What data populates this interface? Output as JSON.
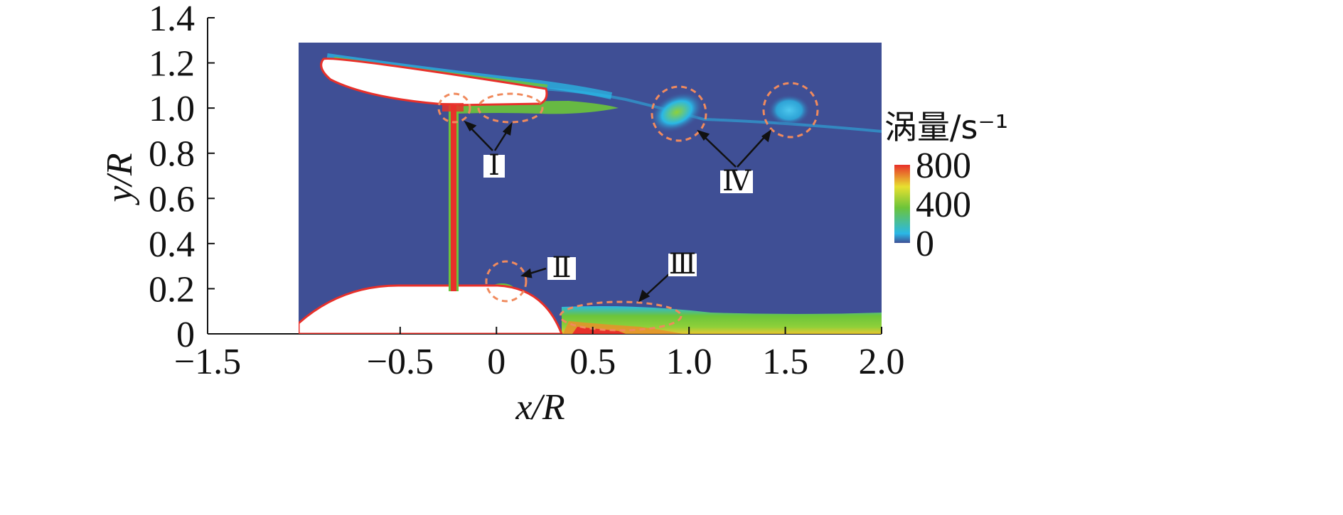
{
  "chart_data": {
    "type": "heatmap",
    "title": "",
    "xlabel": "x/R",
    "ylabel": "y/R",
    "xlim": [
      -1.5,
      2.0
    ],
    "ylim": [
      0,
      1.4
    ],
    "xticks": [
      "−1.5",
      "−0.5",
      "0",
      "0.5",
      "1.0",
      "1.5",
      "2.0"
    ],
    "xtick_values": [
      -1.5,
      -0.5,
      0,
      0.5,
      1.0,
      1.5,
      2.0
    ],
    "yticks": [
      "0",
      "0.2",
      "0.4",
      "0.6",
      "0.8",
      "1.0",
      "1.2",
      "1.4"
    ],
    "ytick_values": [
      0,
      0.2,
      0.4,
      0.6,
      0.8,
      1.0,
      1.2,
      1.4
    ],
    "domain_x": [
      -0.58,
      2.0
    ],
    "domain_y": [
      0,
      1.3
    ],
    "colorbar": {
      "title": "涡量/s⁻¹",
      "ticks": [
        "800",
        "400",
        "0"
      ],
      "tick_values": [
        800,
        400,
        0
      ],
      "range": [
        0,
        800
      ],
      "colors": [
        "#3f4f95",
        "#2ab8e6",
        "#6cc43a",
        "#e8e030",
        "#e8302a"
      ]
    },
    "annotations": [
      {
        "label": "Ⅰ",
        "regions": [
          {
            "x": 0.1,
            "y": 1.02
          },
          {
            "x": 0.37,
            "y": 1.0
          }
        ]
      },
      {
        "label": "Ⅱ",
        "regions": [
          {
            "x": 0.33,
            "y": 0.23
          }
        ]
      },
      {
        "label": "Ⅲ",
        "regions": [
          {
            "x": 0.84,
            "y": 0.07
          }
        ]
      },
      {
        "label": "Ⅳ",
        "regions": [
          {
            "x": 1.1,
            "y": 1.0
          },
          {
            "x": 1.6,
            "y": 1.0
          }
        ]
      }
    ]
  }
}
